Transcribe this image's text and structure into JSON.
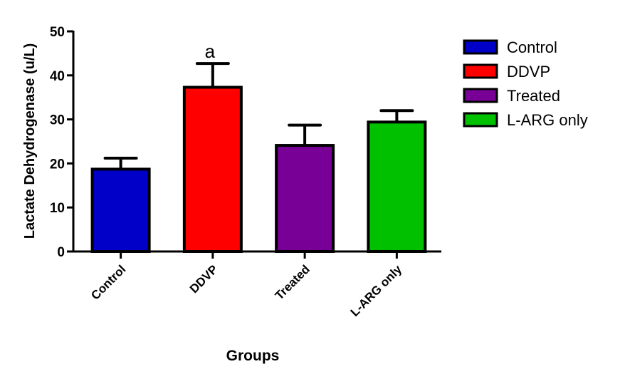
{
  "chart_data": {
    "type": "bar",
    "title": "",
    "xlabel": "Groups",
    "ylabel": "Lactate Dehydrogenase (u/L)",
    "ylim": [
      0,
      50
    ],
    "yticks": [
      "0",
      "10",
      "20",
      "30",
      "40",
      "50"
    ],
    "categories": [
      "Control",
      "DDVP",
      "Treated",
      "L-ARG only"
    ],
    "values": [
      18.7,
      37.3,
      24.1,
      29.4
    ],
    "error_upper": [
      2.5,
      5.4,
      4.6,
      2.6
    ],
    "colors": [
      "#0000c8",
      "#ff0000",
      "#780096",
      "#00c000"
    ],
    "annotations": [
      "",
      "a",
      "",
      ""
    ],
    "legend": {
      "placement": "top-right",
      "entries": [
        "Control",
        "DDVP",
        "Treated",
        "L-ARG only"
      ]
    },
    "grid": false
  }
}
